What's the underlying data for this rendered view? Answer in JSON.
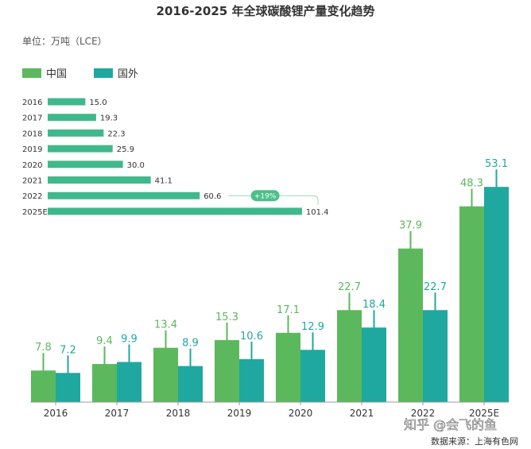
{
  "chart_data": [
    {
      "type": "bar",
      "orientation": "horizontal",
      "categories": [
        "2016",
        "2017",
        "2018",
        "2019",
        "2020",
        "2021",
        "2022",
        "2025E"
      ],
      "values": [
        15.0,
        19.3,
        22.3,
        25.9,
        30.0,
        41.1,
        60.6,
        101.4
      ],
      "value_labels": [
        "15.0",
        "19.3",
        "22.3",
        "25.9",
        "30.0",
        "41.1",
        "60.6",
        "101.4"
      ],
      "annotation": "+19%",
      "colors": {
        "bar": "#3fb98c"
      }
    },
    {
      "type": "bar",
      "title": "2016-2025 年全球碳酸锂产量变化趋势",
      "unit_label": "单位：万吨（LCE）",
      "categories": [
        "2016",
        "2017",
        "2018",
        "2019",
        "2020",
        "2021",
        "2022",
        "2025E"
      ],
      "series": [
        {
          "name": "中国",
          "color": "#5cb85c",
          "values": [
            7.8,
            9.4,
            13.4,
            15.3,
            17.1,
            22.7,
            37.9,
            48.3
          ],
          "labels": [
            "7.8",
            "9.4",
            "13.4",
            "15.3",
            "17.1",
            "22.7",
            "37.9",
            "48.3"
          ]
        },
        {
          "name": "国外",
          "color": "#1fa8a0",
          "values": [
            7.2,
            9.9,
            8.9,
            10.6,
            12.9,
            18.4,
            22.7,
            53.1
          ],
          "labels": [
            "7.2",
            "9.9",
            "8.9",
            "10.6",
            "12.9",
            "18.4",
            "22.7",
            "53.1"
          ]
        }
      ],
      "legend": "top-left",
      "grid": false
    }
  ],
  "footer": {
    "source": "数据来源：上海有色网",
    "watermark": "知乎 @会飞的鱼"
  }
}
